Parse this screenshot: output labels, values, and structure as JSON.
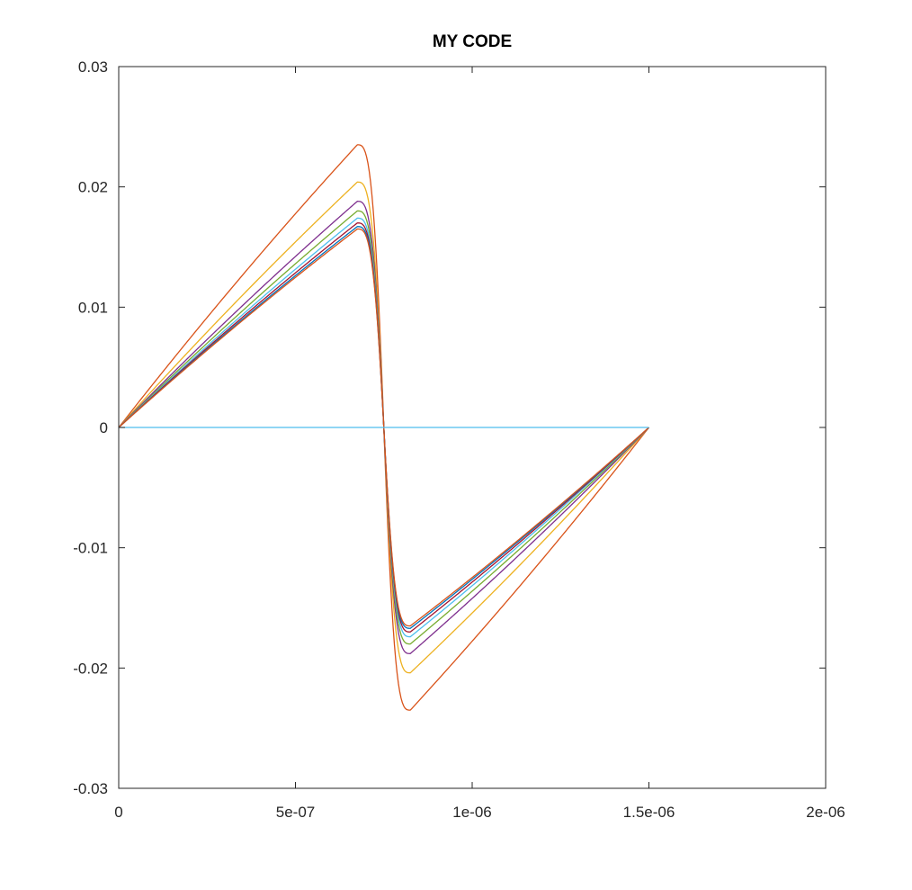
{
  "chart_data": {
    "type": "line",
    "title": "MY CODE",
    "xlabel": "",
    "ylabel": "",
    "xlim": [
      0,
      2e-06
    ],
    "ylim": [
      -0.03,
      0.03
    ],
    "xticks": [
      0,
      5e-07,
      1e-06,
      1.5e-06,
      2e-06
    ],
    "xtick_labels": [
      "0",
      "5e-07",
      "1e-06",
      "1.5e-06",
      "2e-06"
    ],
    "yticks": [
      0.03,
      0.02,
      0.01,
      0,
      -0.01,
      -0.02,
      -0.03
    ],
    "ytick_labels": [
      "0.03",
      "0.02",
      "0.01",
      "0",
      "-0.01",
      "-0.02",
      "-0.03"
    ],
    "grid": false,
    "box": true,
    "legend": "none",
    "colors": [
      "#0072bd",
      "#d95319",
      "#edb120",
      "#7e2f8e",
      "#77ac30",
      "#4dbeee",
      "#a2142f"
    ],
    "x_end": 1.5e-06,
    "x_center": 7.5e-07,
    "series_shape": {
      "x_peak_pos": 6.75e-07,
      "x_peak_neg": 8.3e-07
    },
    "series": [
      {
        "color": "#d95319",
        "peak": 0.0235
      },
      {
        "color": "#edb120",
        "peak": 0.0204
      },
      {
        "color": "#7e2f8e",
        "peak": 0.0188
      },
      {
        "color": "#77ac30",
        "peak": 0.018
      },
      {
        "color": "#4dbeee",
        "peak": 0.0174
      },
      {
        "color": "#a2142f",
        "peak": 0.017
      },
      {
        "color": "#0072bd",
        "peak": 0.0167
      },
      {
        "color": "#d95319",
        "peak": 0.0165
      },
      {
        "color": "#4dbeee",
        "peak": 0.0
      }
    ]
  }
}
